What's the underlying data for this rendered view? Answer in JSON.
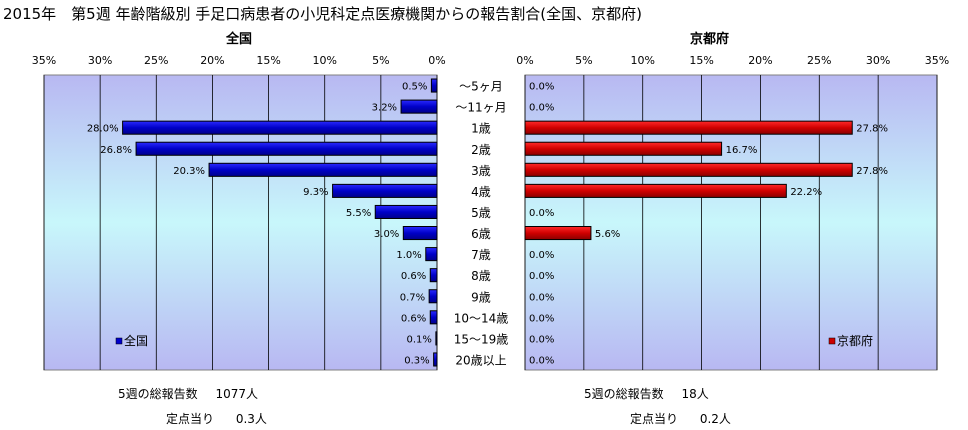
{
  "title": "2015年　第5週 年齢階級別 手足口病患者の小児科定点医療機関からの報告割合(全国、京都府)",
  "chart_data": [
    {
      "type": "bar",
      "orientation": "horizontal",
      "title": "全国",
      "categories": [
        "～5ヶ月",
        "～11ヶ月",
        "1歳",
        "2歳",
        "3歳",
        "4歳",
        "5歳",
        "6歳",
        "7歳",
        "8歳",
        "9歳",
        "10～14歳",
        "15～19歳",
        "20歳以上"
      ],
      "series": [
        {
          "name": "全国",
          "values": [
            0.5,
            3.2,
            28.0,
            26.8,
            20.3,
            9.3,
            5.5,
            3.0,
            1.0,
            0.6,
            0.7,
            0.6,
            0.1,
            0.3
          ]
        }
      ],
      "labels": [
        "0.5%",
        "3.2%",
        "28.0%",
        "26.8%",
        "20.3%",
        "9.3%",
        "5.5%",
        "3.0%",
        "1.0%",
        "0.6%",
        "0.7%",
        "0.6%",
        "0.1%",
        "0.3%"
      ],
      "xlim": [
        0,
        35
      ],
      "xticks": [
        "0%",
        "5%",
        "10%",
        "15%",
        "20%",
        "25%",
        "30%",
        "35%"
      ],
      "reversed": true,
      "color": "#0000cc",
      "legend": "bottom-left"
    },
    {
      "type": "bar",
      "orientation": "horizontal",
      "title": "京都府",
      "categories": [
        "～5ヶ月",
        "～11ヶ月",
        "1歳",
        "2歳",
        "3歳",
        "4歳",
        "5歳",
        "6歳",
        "7歳",
        "8歳",
        "9歳",
        "10～14歳",
        "15～19歳",
        "20歳以上"
      ],
      "series": [
        {
          "name": "京都府",
          "values": [
            0,
            0,
            27.8,
            16.7,
            27.8,
            22.2,
            0,
            5.6,
            0,
            0,
            0,
            0,
            0,
            0
          ]
        }
      ],
      "labels": [
        "0.0%",
        "0.0%",
        "27.8%",
        "16.7%",
        "27.8%",
        "22.2%",
        "0.0%",
        "5.6%",
        "0.0%",
        "0.0%",
        "0.0%",
        "0.0%",
        "0.0%",
        "0.0%"
      ],
      "xlim": [
        0,
        35
      ],
      "xticks": [
        "0%",
        "5%",
        "10%",
        "15%",
        "20%",
        "25%",
        "30%",
        "35%"
      ],
      "reversed": false,
      "color": "#cc0000",
      "legend": "bottom-right"
    }
  ],
  "footer": {
    "left": {
      "total_label": "5週の総報告数",
      "total_value": "1077人",
      "per_label": "定点当り",
      "per_value": "0.3人"
    },
    "right": {
      "total_label": "5週の総報告数",
      "total_value": "18人",
      "per_label": "定点当り",
      "per_value": "0.2人"
    }
  }
}
